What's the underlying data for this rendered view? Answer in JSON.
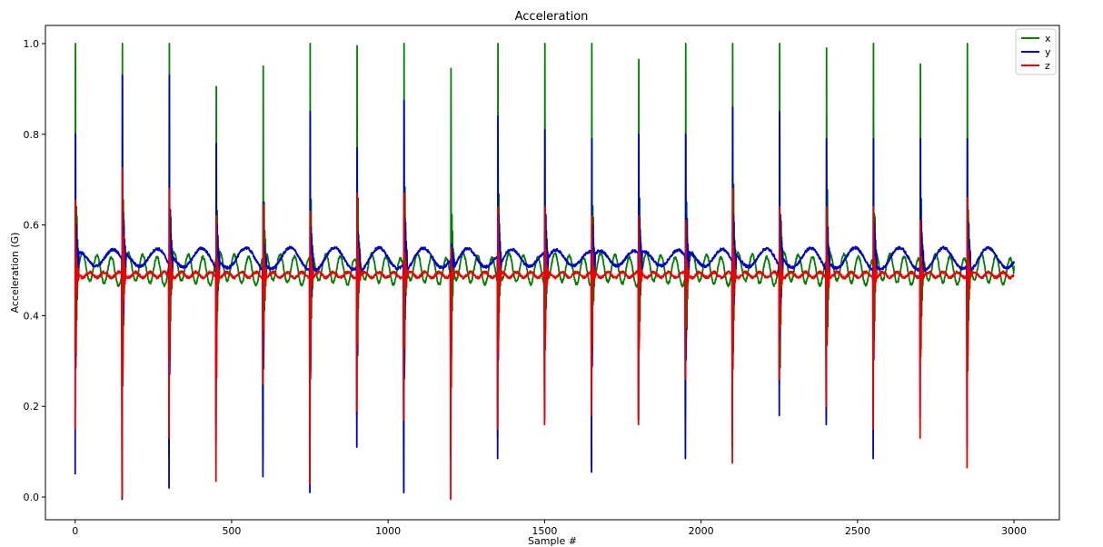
{
  "chart_data": {
    "type": "line",
    "title": "Acceleration",
    "xlabel": "Sample #",
    "ylabel": "Acceleration (G)",
    "xlim": [
      -95,
      3145
    ],
    "ylim": [
      -0.05,
      1.04
    ],
    "xticks": [
      0,
      500,
      1000,
      1500,
      2000,
      2500,
      3000
    ],
    "yticks": [
      0.0,
      0.2,
      0.4,
      0.6,
      0.8,
      1.0
    ],
    "xtick_labels": [
      "0",
      "500",
      "1000",
      "1500",
      "2000",
      "2500",
      "3000"
    ],
    "ytick_labels": [
      "0.0",
      "0.2",
      "0.4",
      "0.6",
      "0.8",
      "1.0"
    ],
    "legend_position": "top-right",
    "grid": false,
    "x_range": [
      0,
      3000
    ],
    "spike_interval": 150,
    "baselines": {
      "x": 0.51,
      "y": 0.52,
      "z": 0.49
    },
    "series": [
      {
        "name": "x",
        "color": "#008000",
        "spike_peaks": [
          1.0,
          1.0,
          1.0,
          0.905,
          0.95,
          1.0,
          0.995,
          1.0,
          0.945,
          1.0,
          1.0,
          1.0,
          0.965,
          1.0,
          1.0,
          1.0,
          0.99,
          1.0,
          0.955,
          1.0
        ],
        "spike_mins": [
          0.32,
          0.0,
          0.09,
          0.16,
          0.08,
          0.04,
          0.18,
          0.01,
          0.12,
          0.13,
          0.19,
          0.07,
          0.17,
          0.17,
          0.13,
          0.25,
          0.17,
          0.38,
          0.4,
          0.36
        ]
      },
      {
        "name": "y",
        "color": "#0000cc",
        "spike_peaks": [
          0.8,
          0.93,
          0.93,
          0.78,
          0.65,
          0.85,
          0.77,
          0.875,
          0.41,
          0.84,
          0.81,
          0.79,
          0.8,
          0.8,
          0.86,
          0.85,
          0.79,
          0.79,
          0.79,
          0.79
        ],
        "spike_mins": [
          0.05,
          -0.005,
          0.02,
          0.12,
          0.045,
          0.01,
          0.11,
          0.01,
          0.09,
          0.085,
          0.17,
          0.055,
          0.17,
          0.085,
          0.11,
          0.18,
          0.16,
          0.085,
          0.175,
          0.11
        ]
      },
      {
        "name": "z",
        "color": "#ee0000",
        "spike_peaks": [
          0.655,
          0.725,
          0.68,
          0.62,
          0.645,
          0.63,
          0.67,
          0.67,
          0.55,
          0.64,
          0.64,
          0.62,
          0.62,
          0.61,
          0.68,
          0.64,
          0.64,
          0.64,
          0.61,
          0.66
        ],
        "spike_mins": [
          0.15,
          0.0,
          0.13,
          0.035,
          0.25,
          0.03,
          0.19,
          0.17,
          -0.005,
          0.15,
          0.16,
          0.18,
          0.16,
          0.26,
          0.075,
          0.26,
          0.2,
          0.15,
          0.13,
          0.065
        ]
      }
    ]
  }
}
